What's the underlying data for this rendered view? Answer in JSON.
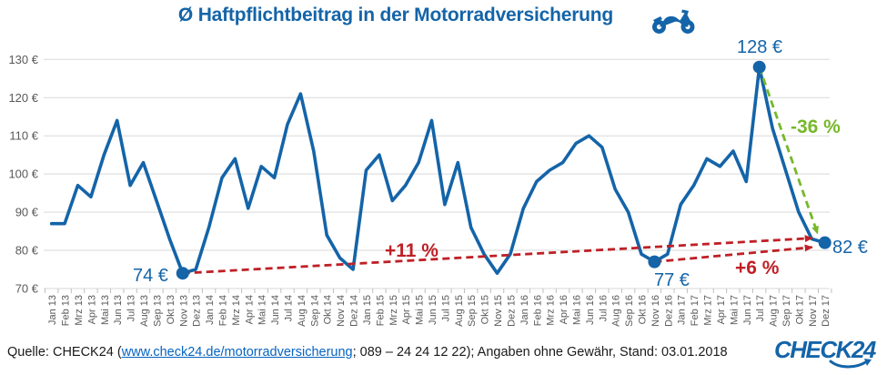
{
  "header": {
    "title": "Ø Haftpflichtbeitrag in der Motorradversicherung"
  },
  "footer": {
    "source_prefix": "Quelle: CHECK24 (",
    "source_link": "www.check24.de/motorradversicherung",
    "source_suffix": "; 089 – 24 24 12 22); Angaben ohne Gewähr, Stand: 03.01.2018",
    "logo_text": "CHECK24"
  },
  "colors": {
    "brand_blue": "#1464a8",
    "line_blue": "#1464a8",
    "trend_red": "#bf2026",
    "trend_green": "#76b82a",
    "grid_gray": "#d9d9d9",
    "tick_gray": "#bfbfbf",
    "axis_text_gray": "#595959",
    "link_blue": "#0563c1"
  },
  "annotations": {
    "low_2013": "74 €",
    "low_2016": "77 €",
    "peak_2017": "128 €",
    "end_2017": "82 €",
    "trend_full": "+11 %",
    "trend_recent": "+6 %",
    "drop_2017": "-36 %"
  },
  "chart_data": {
    "type": "line",
    "title": "Ø Haftpflichtbeitrag in der Motorradversicherung",
    "unit": "€",
    "ylim": [
      70,
      130
    ],
    "ytick_step": 10,
    "ytick_suffix": " €",
    "grid": true,
    "legend": "none",
    "categories": [
      "Jan 13",
      "Feb 13",
      "Mrz 13",
      "Apr 13",
      "Mai 13",
      "Jun 13",
      "Jul 13",
      "Aug 13",
      "Sep 13",
      "Okt 13",
      "Nov 13",
      "Dez 13",
      "Jan 14",
      "Feb 14",
      "Mrz 14",
      "Apr 14",
      "Mai 14",
      "Jun 14",
      "Jul 14",
      "Aug 14",
      "Sep 14",
      "Okt 14",
      "Nov 14",
      "Dez 14",
      "Jan 15",
      "Feb 15",
      "Mrz 15",
      "Apr 15",
      "Mai 15",
      "Jun 15",
      "Jul 15",
      "Aug 15",
      "Sep 15",
      "Okt 15",
      "Nov 15",
      "Dez 15",
      "Jan 16",
      "Feb 16",
      "Mrz 16",
      "Apr 16",
      "Mai 16",
      "Jun 16",
      "Jul 16",
      "Aug 16",
      "Sep 16",
      "Okt 16",
      "Nov 16",
      "Dez 16",
      "Jan 17",
      "Feb 17",
      "Mrz 17",
      "Apr 17",
      "Mai 17",
      "Jun 17",
      "Jul 17",
      "Aug 17",
      "Sep 17",
      "Okt 17",
      "Nov 17",
      "Dez 17"
    ],
    "values": [
      87,
      87,
      97,
      94,
      105,
      114,
      97,
      103,
      93,
      83,
      74,
      75,
      86,
      99,
      104,
      91,
      102,
      99,
      113,
      121,
      106,
      84,
      78,
      75,
      101,
      105,
      93,
      97,
      103,
      114,
      92,
      103,
      86,
      79,
      74,
      79,
      91,
      98,
      101,
      103,
      108,
      110,
      107,
      96,
      90,
      79,
      77,
      79,
      92,
      97,
      104,
      102,
      106,
      98,
      128,
      112,
      101,
      90,
      83,
      82
    ],
    "markers": [
      {
        "category": "Nov 13",
        "value": 74,
        "label": "74 €"
      },
      {
        "category": "Nov 16",
        "value": 77,
        "label": "77 €"
      },
      {
        "category": "Jul 17",
        "value": 128,
        "label": "128 €"
      },
      {
        "category": "Dez 17",
        "value": 82,
        "label": "82 €"
      }
    ],
    "trend_arrows": [
      {
        "label": "+11 %",
        "color_key": "trend_red",
        "from_category": "Nov 13",
        "from_value": 74,
        "to_category": "Dez 17",
        "to_value": 82,
        "tip_dx": -14,
        "tip_dy": -5
      },
      {
        "label": "+6 %",
        "color_key": "trend_red",
        "from_category": "Nov 16",
        "from_value": 77,
        "to_category": "Dez 17",
        "to_value": 82,
        "tip_dx": -14,
        "tip_dy": 5
      },
      {
        "label": "-36 %",
        "color_key": "trend_green",
        "from_category": "Jul 17",
        "from_value": 128,
        "to_category": "Dez 17",
        "to_value": 82,
        "tip_dx": -8,
        "tip_dy": -10
      }
    ]
  }
}
